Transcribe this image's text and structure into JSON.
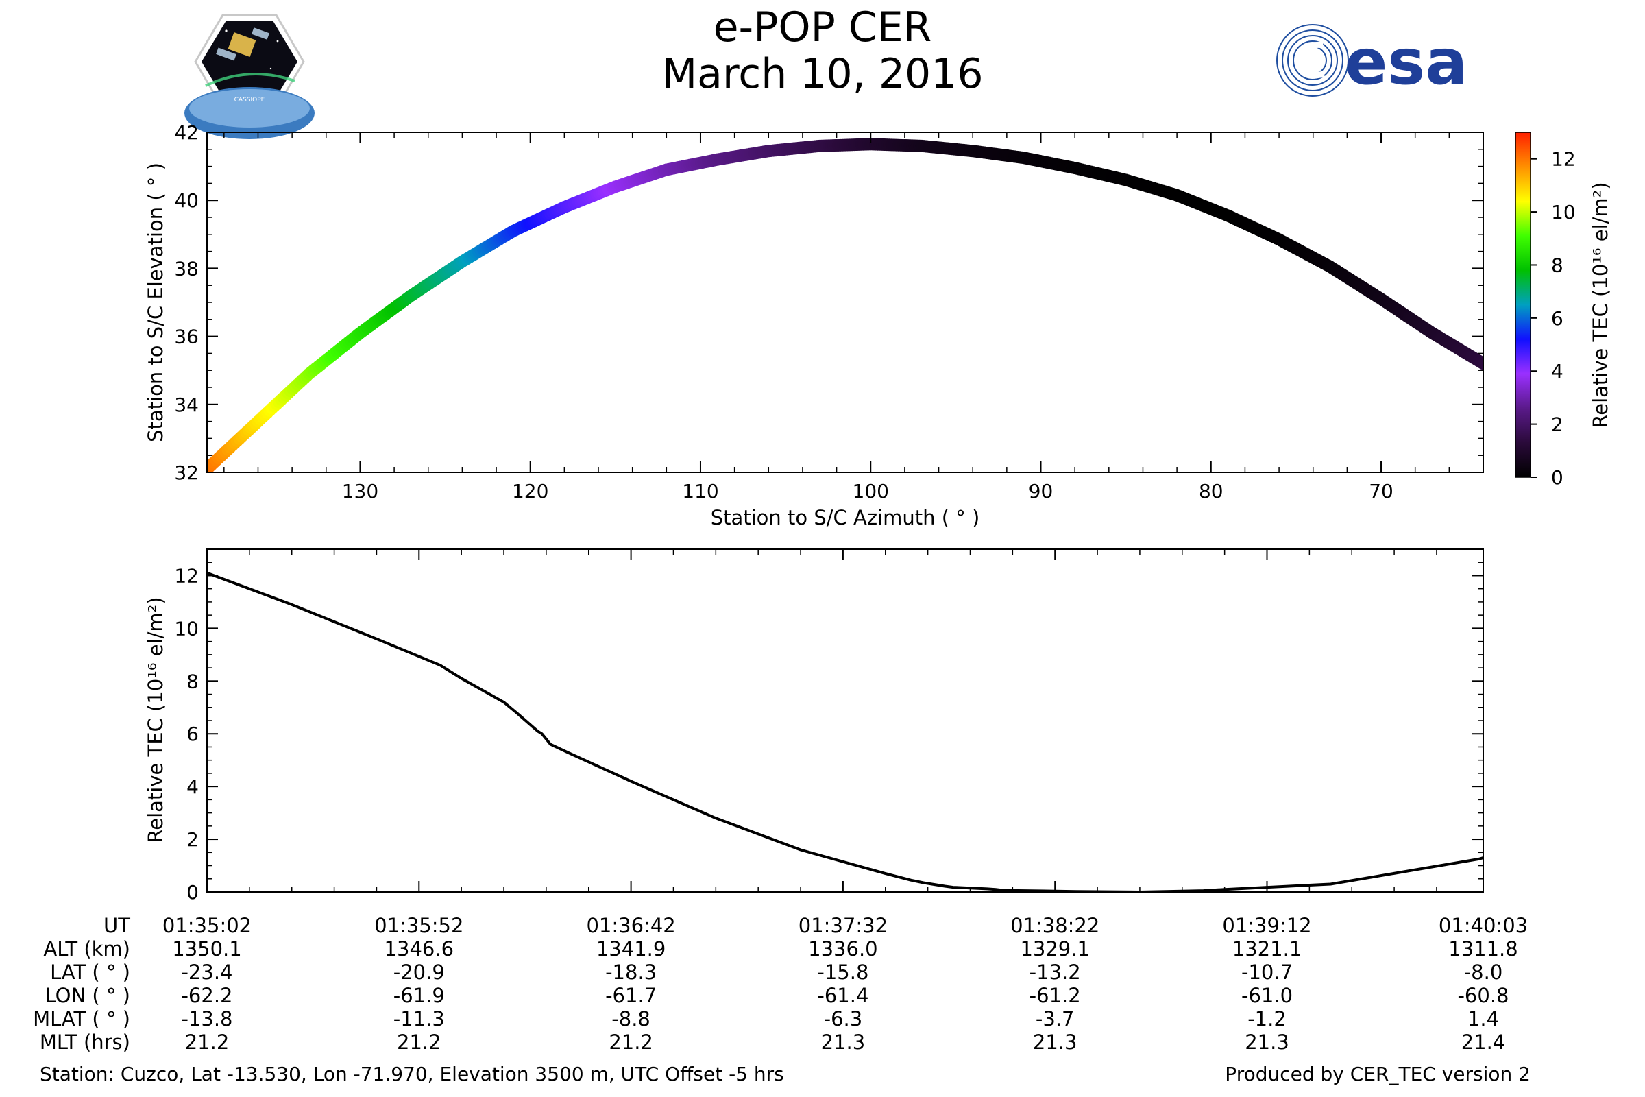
{
  "header": {
    "title_line1": "e-POP CER",
    "title_line2": "March 10, 2016",
    "left_logo_text": "CASSIOPE",
    "right_logo_text": "esa"
  },
  "colors": {
    "line": "#000000",
    "esa_blue": "#003399",
    "colormap": [
      "#000000",
      "#2a0a3a",
      "#5a1a8a",
      "#9a30ff",
      "#1010ff",
      "#00a0c0",
      "#00c000",
      "#40ff00",
      "#ffff00",
      "#ff9000",
      "#ff2000"
    ]
  },
  "chart_data": [
    {
      "type": "scatter",
      "title": "",
      "xlabel": "Station to S/C Azimuth ( ° )",
      "ylabel": "Station to S/C Elevation ( ° )",
      "xlim": [
        139,
        64
      ],
      "ylim": [
        32,
        42
      ],
      "xticks": [
        130,
        120,
        110,
        100,
        90,
        80,
        70
      ],
      "yticks": [
        32,
        34,
        36,
        38,
        40,
        42
      ],
      "x": [
        139,
        136,
        133,
        130,
        127,
        124,
        121,
        118,
        115,
        112,
        109,
        106,
        103,
        100,
        97,
        94,
        91,
        88,
        85,
        82,
        79,
        76,
        73,
        70,
        67,
        64
      ],
      "y": [
        32.1,
        33.5,
        34.9,
        36.1,
        37.2,
        38.2,
        39.1,
        39.8,
        40.4,
        40.9,
        41.2,
        41.45,
        41.6,
        41.65,
        41.6,
        41.45,
        41.25,
        40.95,
        40.6,
        40.15,
        39.55,
        38.85,
        38.05,
        37.1,
        36.1,
        35.2
      ],
      "color_values": [
        12.1,
        10.7,
        9.6,
        8.5,
        7.5,
        6.6,
        5.5,
        4.6,
        3.8,
        3.1,
        2.5,
        2.0,
        1.5,
        1.0,
        0.6,
        0.35,
        0.2,
        0.1,
        0.05,
        0.02,
        0.0,
        0.05,
        0.2,
        0.5,
        0.9,
        1.35
      ],
      "colorbar": {
        "label": "Relative TEC (10¹⁶ el/m²)",
        "range": [
          0,
          13
        ],
        "ticks": [
          0,
          2,
          4,
          6,
          8,
          10,
          12
        ]
      }
    },
    {
      "type": "line",
      "title": "",
      "xlabel": "",
      "ylabel": "Relative TEC (10¹⁶ el/m²)",
      "xlim": [
        0,
        301
      ],
      "ylim": [
        0,
        13
      ],
      "yticks": [
        0,
        2,
        4,
        6,
        8,
        10,
        12
      ],
      "series": [
        {
          "name": "Relative TEC",
          "x": [
            0,
            20,
            40,
            55,
            57,
            60,
            70,
            73,
            78,
            79,
            80,
            81,
            85,
            100,
            120,
            140,
            160,
            166,
            169,
            171,
            174,
            176,
            184,
            186,
            188,
            205,
            220,
            235,
            240,
            265,
            300,
            301
          ],
          "y": [
            12.1,
            10.9,
            9.6,
            8.6,
            8.4,
            8.1,
            7.2,
            6.8,
            6.1,
            6.0,
            5.8,
            5.6,
            5.3,
            4.2,
            2.8,
            1.6,
            0.7,
            0.45,
            0.35,
            0.3,
            0.22,
            0.18,
            0.12,
            0.1,
            0.06,
            0.02,
            0.0,
            0.05,
            0.1,
            0.3,
            1.25,
            1.3
          ]
        }
      ]
    }
  ],
  "time_table": {
    "rows": [
      {
        "label": "UT",
        "values": [
          "01:35:02",
          "01:35:52",
          "01:36:42",
          "01:37:32",
          "01:38:22",
          "01:39:12",
          "01:40:03"
        ]
      },
      {
        "label": "ALT (km)",
        "values": [
          "1350.1",
          "1346.6",
          "1341.9",
          "1336.0",
          "1329.1",
          "1321.1",
          "1311.8"
        ]
      },
      {
        "label": "LAT ( ° )",
        "values": [
          "-23.4",
          "-20.9",
          "-18.3",
          "-15.8",
          "-13.2",
          "-10.7",
          "-8.0"
        ]
      },
      {
        "label": "LON ( ° )",
        "values": [
          "-62.2",
          "-61.9",
          "-61.7",
          "-61.4",
          "-61.2",
          "-61.0",
          "-60.8"
        ]
      },
      {
        "label": "MLAT ( ° )",
        "values": [
          "-13.8",
          "-11.3",
          "-8.8",
          "-6.3",
          "-3.7",
          "-1.2",
          "1.4"
        ]
      },
      {
        "label": "MLT (hrs)",
        "values": [
          "21.2",
          "21.2",
          "21.2",
          "21.3",
          "21.3",
          "21.3",
          "21.4"
        ]
      }
    ]
  },
  "footer": {
    "station": "Station: Cuzco, Lat -13.530, Lon -71.970, Elevation 3500 m, UTC Offset -5 hrs",
    "produced": "Produced by CER_TEC version 2"
  }
}
